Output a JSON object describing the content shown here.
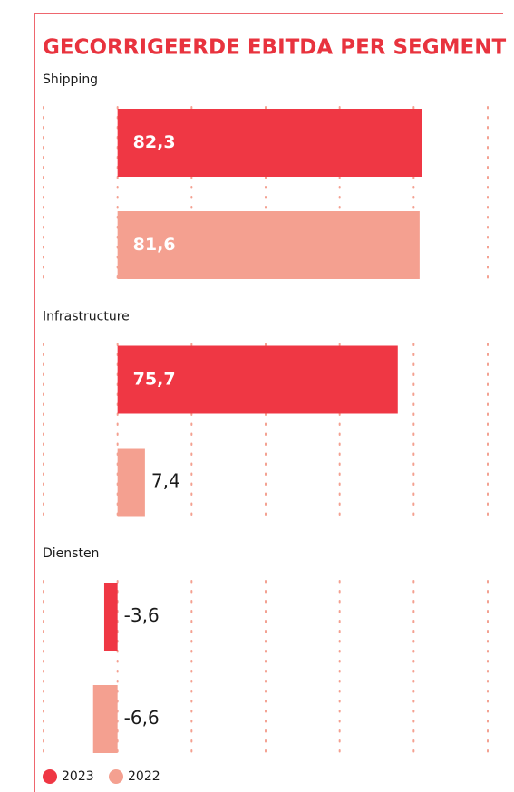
{
  "chart_data": {
    "type": "bar",
    "orientation": "horizontal",
    "title": "GECORRIGEERDE EBITDA PER SEGMENT",
    "categories": [
      "Shipping",
      "Infrastructure",
      "Diensten"
    ],
    "series": [
      {
        "name": "2023",
        "color": "#ef3744",
        "values": [
          82.3,
          75.7,
          -3.6
        ],
        "value_labels": [
          "82,3",
          "75,7",
          "-3,6"
        ]
      },
      {
        "name": "2022",
        "color": "#f4a090",
        "values": [
          81.6,
          7.4,
          -6.6
        ],
        "value_labels": [
          "81,6",
          "7,4",
          "-6,6"
        ]
      }
    ],
    "xlim": [
      -20,
      100
    ],
    "xticks": [
      -20,
      0,
      20,
      40,
      60,
      80,
      100
    ],
    "grid": true,
    "legend": "bottom-left"
  }
}
